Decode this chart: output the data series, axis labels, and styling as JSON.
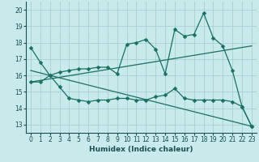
{
  "title": "",
  "xlabel": "Humidex (Indice chaleur)",
  "ylabel": "",
  "xlim": [
    -0.5,
    23.5
  ],
  "ylim": [
    12.5,
    20.5
  ],
  "yticks": [
    13,
    14,
    15,
    16,
    17,
    18,
    19,
    20
  ],
  "xticks": [
    0,
    1,
    2,
    3,
    4,
    5,
    6,
    7,
    8,
    9,
    10,
    11,
    12,
    13,
    14,
    15,
    16,
    17,
    18,
    19,
    20,
    21,
    22,
    23
  ],
  "bg_color": "#c8eaea",
  "line_color": "#1a7060",
  "grid_color": "#a8d0d0",
  "line1_x": [
    0,
    1,
    2,
    3,
    4,
    5,
    6,
    7,
    8,
    9,
    10,
    11,
    12,
    13,
    14,
    15,
    16,
    17,
    18,
    19,
    20,
    21,
    22,
    23
  ],
  "line1_y": [
    17.7,
    16.8,
    16.0,
    16.2,
    16.3,
    16.4,
    16.4,
    16.5,
    16.5,
    16.1,
    17.9,
    18.0,
    18.2,
    17.6,
    16.1,
    18.8,
    18.4,
    18.5,
    19.8,
    18.3,
    17.8,
    16.3,
    14.1,
    12.9
  ],
  "line2_x": [
    0,
    1,
    2,
    3,
    4,
    5,
    6,
    7,
    8,
    9,
    10,
    11,
    12,
    13,
    14,
    15,
    16,
    17,
    18,
    19,
    20,
    21,
    22,
    23
  ],
  "line2_y": [
    15.6,
    15.6,
    16.0,
    15.3,
    14.6,
    14.5,
    14.4,
    14.5,
    14.5,
    14.6,
    14.6,
    14.5,
    14.5,
    14.7,
    14.8,
    15.2,
    14.6,
    14.5,
    14.5,
    14.5,
    14.5,
    14.4,
    14.1,
    12.9
  ],
  "trend1_x": [
    0,
    23
  ],
  "trend1_y": [
    15.6,
    17.8
  ],
  "trend2_x": [
    0,
    23
  ],
  "trend2_y": [
    16.3,
    12.9
  ],
  "markersize": 2.5,
  "linewidth": 0.9,
  "tick_fontsize": 5.5,
  "xlabel_fontsize": 6.5
}
